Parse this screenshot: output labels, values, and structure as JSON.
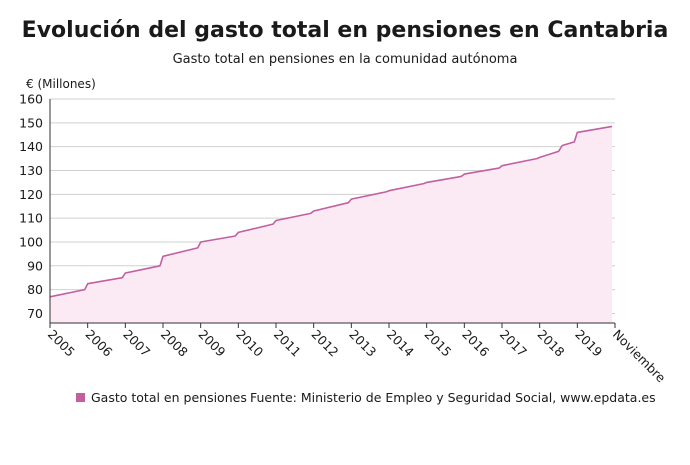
{
  "title": "Evolución del gasto total en pensiones en Cantabria",
  "subtitle": "Gasto total en pensiones en la comunidad autónoma",
  "source": "Fuente: Ministerio de Empleo y Seguridad Social, www.epdata.es",
  "colors": {
    "line": "#c2609f",
    "fill": "#fbeaf4",
    "grid": "#d0d0d0"
  },
  "chart_data": {
    "type": "area",
    "ylabel": "€ (Millones)",
    "ylim": [
      66,
      160
    ],
    "yticks": [
      70,
      80,
      90,
      100,
      110,
      120,
      130,
      140,
      150,
      160
    ],
    "xticks": [
      "2005",
      "2006",
      "2007",
      "2008",
      "2009",
      "2010",
      "2011",
      "2012",
      "2013",
      "2014",
      "2015",
      "2016",
      "2017",
      "2018",
      "2019",
      "Noviembre"
    ],
    "grid": true,
    "legend": "bottom-left",
    "series": [
      {
        "name": "Gasto total en pensiones",
        "x": [
          2005.0,
          2005.92,
          2006.0,
          2006.92,
          2007.0,
          2007.92,
          2008.0,
          2008.92,
          2009.0,
          2009.92,
          2010.0,
          2010.92,
          2011.0,
          2011.92,
          2012.0,
          2012.92,
          2013.0,
          2013.92,
          2014.0,
          2014.92,
          2015.0,
          2015.92,
          2016.0,
          2016.92,
          2017.0,
          2017.92,
          2018.0,
          2018.5,
          2018.6,
          2018.92,
          2019.0,
          2019.92
        ],
        "y": [
          77,
          80,
          82.5,
          85,
          87,
          90,
          94,
          97.5,
          100,
          102.5,
          104,
          107.5,
          109,
          112,
          113,
          116.5,
          118,
          121,
          121.5,
          124.5,
          125,
          127.5,
          128.5,
          131,
          132,
          135,
          135.5,
          138,
          140.5,
          142,
          146,
          148.5
        ]
      }
    ]
  }
}
